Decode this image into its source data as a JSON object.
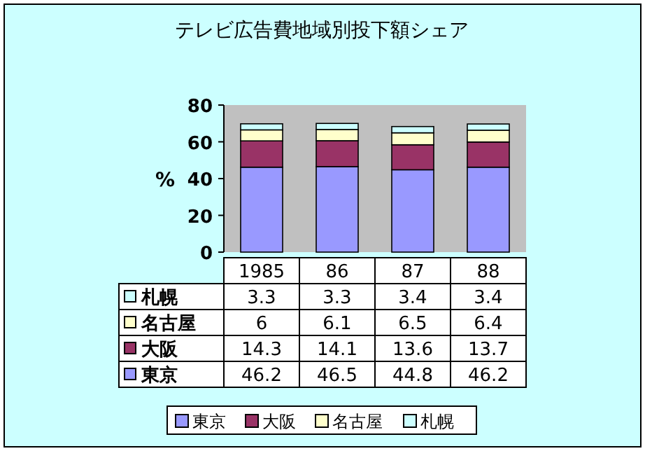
{
  "chart_data": {
    "type": "bar",
    "title": "テレビ広告費地域別投下額シェア",
    "ylabel": "%",
    "categories": [
      "1985",
      "86",
      "87",
      "88"
    ],
    "series": [
      {
        "name": "東京",
        "color": "#9999ff",
        "values": [
          46.2,
          46.5,
          44.8,
          46.2
        ]
      },
      {
        "name": "大阪",
        "color": "#993366",
        "values": [
          14.3,
          14.1,
          13.6,
          13.7
        ]
      },
      {
        "name": "名古屋",
        "color": "#ffffcc",
        "values": [
          6,
          6.1,
          6.5,
          6.4
        ]
      },
      {
        "name": "札幌",
        "color": "#ccffff",
        "values": [
          3.3,
          3.3,
          3.4,
          3.4
        ]
      }
    ],
    "stacked": true,
    "ylim": [
      0,
      80
    ],
    "yticks": [
      0,
      20,
      40,
      60,
      80
    ],
    "data_labels": true,
    "legend": "bottom"
  }
}
